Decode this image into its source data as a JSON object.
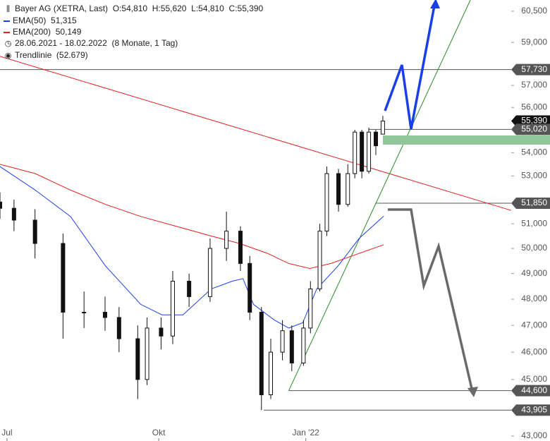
{
  "chart_data": {
    "type": "candlestick",
    "title": "Bayer AG (XETRA, Last)",
    "last_quote": [
      {
        "key": "O:",
        "value": 54810,
        "label": "54,810"
      },
      {
        "key": "H:",
        "value": 55620,
        "label": "55,620"
      },
      {
        "key": "L:",
        "value": 54810,
        "label": "54,810"
      },
      {
        "key": "C:",
        "value": 55390,
        "label": "55,390"
      }
    ],
    "period": "28.06.2021 - 18.02.2022",
    "period_length": "(8 Monate, 1 Tag)",
    "log_scale": true,
    "xlim": [
      0,
      219
    ],
    "ylim": [
      42830,
      61050
    ],
    "xticks": [
      {
        "value": 3,
        "label": "Jul"
      },
      {
        "value": 68,
        "label": "Okt"
      },
      {
        "value": 131,
        "label": "Jan '22"
      }
    ],
    "yticks": [
      {
        "value": 43000,
        "label": "43,000"
      },
      {
        "value": 45000,
        "label": "45,000"
      },
      {
        "value": 46000,
        "label": "46,000"
      },
      {
        "value": 47000,
        "label": "47,000"
      },
      {
        "value": 48000,
        "label": "48,000"
      },
      {
        "value": 49000,
        "label": "49,000"
      },
      {
        "value": 50000,
        "label": "50,000"
      },
      {
        "value": 51000,
        "label": "51,000"
      },
      {
        "value": 53000,
        "label": "53,000"
      },
      {
        "value": 54000,
        "label": "54,000"
      },
      {
        "value": 56000,
        "label": "56,000"
      },
      {
        "value": 57000,
        "label": "57,000"
      },
      {
        "value": 59000,
        "label": "59,000"
      },
      {
        "value": 60500,
        "label": "60,500"
      }
    ],
    "candles": {
      "x": [
        0,
        6,
        15,
        27,
        36,
        45,
        51,
        59,
        63,
        69,
        74,
        81,
        90,
        97,
        103,
        107,
        112,
        116,
        121,
        125,
        130,
        133,
        137,
        140,
        145,
        149,
        152,
        155,
        158,
        161,
        164
      ],
      "open": [
        51900,
        51640,
        51150,
        50200,
        47500,
        47500,
        47300,
        46500,
        45000,
        46900,
        46600,
        48700,
        48100,
        50000,
        50700,
        49400,
        47500,
        44450,
        46000,
        46800,
        45600,
        46900,
        48400,
        50700,
        53100,
        51800,
        53100,
        54900,
        53200,
        54900,
        54810
      ],
      "high": [
        52300,
        52000,
        51600,
        50600,
        48300,
        48100,
        47700,
        47000,
        47300,
        47300,
        49100,
        49000,
        50400,
        51500,
        50900,
        49700,
        47700,
        46500,
        47200,
        47000,
        47200,
        48700,
        51000,
        53400,
        53300,
        53500,
        55000,
        55000,
        55100,
        55000,
        55620
      ],
      "low": [
        51200,
        50700,
        49600,
        46500,
        46900,
        46800,
        46000,
        44300,
        44800,
        46100,
        46300,
        47700,
        47900,
        49500,
        49100,
        47200,
        43905,
        44300,
        45700,
        45300,
        45500,
        46700,
        48300,
        50500,
        51500,
        51700,
        52900,
        52900,
        53100,
        53900,
        54810
      ],
      "close": [
        51640,
        51150,
        50200,
        47500,
        47500,
        47300,
        46500,
        45000,
        46900,
        46600,
        48700,
        48100,
        50000,
        50700,
        49400,
        47500,
        44450,
        46000,
        46800,
        45600,
        46900,
        48400,
        50700,
        53100,
        51800,
        53100,
        54900,
        53200,
        54900,
        54300,
        55390
      ]
    },
    "series": [
      {
        "name": "EMA(50)",
        "color": "#2040e0",
        "value_label": "51,315",
        "x": [
          0,
          15.1,
          30.2,
          45.2,
          60.3,
          69.4,
          78.4,
          90.5,
          99.5,
          104.1,
          108.6,
          117.6,
          123.7,
          129.7,
          135.7,
          144.8,
          153.8,
          164.4
        ],
        "values": [
          53400,
          52400,
          51300,
          49300,
          47800,
          47400,
          47400,
          48400,
          48700,
          48800,
          47800,
          47200,
          46900,
          47100,
          48400,
          49300,
          50400,
          51315
        ]
      },
      {
        "name": "EMA(200)",
        "color": "#e02020",
        "value_label": "50,149",
        "x": [
          0,
          15.1,
          30.2,
          45.2,
          60.3,
          75.4,
          90.5,
          102.6,
          114.6,
          123.7,
          132.7,
          141.8,
          150.8,
          164.4
        ],
        "values": [
          53500,
          53100,
          52400,
          51800,
          51300,
          50900,
          50500,
          50200,
          49800,
          49400,
          49200,
          49400,
          49700,
          50149
        ]
      }
    ],
    "trendline": {
      "name": "Trendlinie",
      "value_label": "(52.679)",
      "color": "#e02020",
      "x": [
        0,
        219
      ],
      "values": [
        58350,
        51550
      ]
    },
    "support_line": {
      "color": "#2a8a2a",
      "x": [
        123.7,
        201.5
      ],
      "values": [
        44600,
        61050
      ]
    },
    "levels": [
      {
        "value": 57730,
        "label": "57,730",
        "x0": 0,
        "color": "#555555"
      },
      {
        "value": 55390,
        "label": "55,390",
        "x0": null,
        "color": "#111111"
      },
      {
        "value": 55020,
        "label": "55,020",
        "x0": 158,
        "color": "#555555"
      },
      {
        "value": 51850,
        "label": "51,850",
        "x0": 161,
        "color": "#555555"
      },
      {
        "value": 44600,
        "label": "44,600",
        "x0": 123.7,
        "color": "#555555"
      },
      {
        "value": 43905,
        "label": "43,905",
        "x0": 113,
        "color": "#555555"
      }
    ]
  }
}
